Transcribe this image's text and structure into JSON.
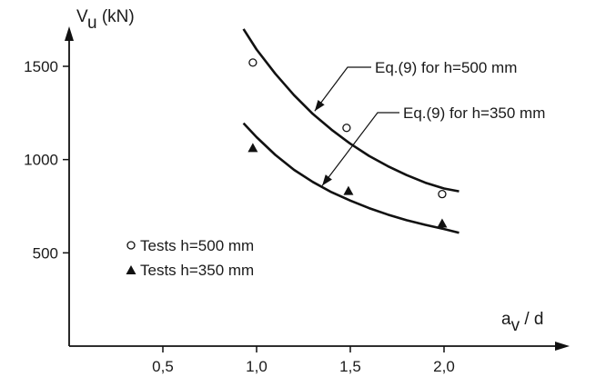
{
  "chart_data": {
    "type": "scatter",
    "title": "",
    "xlabel": {
      "main": "a",
      "sub": "v",
      "rest": " / d"
    },
    "ylabel": {
      "main": "V",
      "sub": "u",
      "rest": " (kN)"
    },
    "xlim": [
      0,
      2.5
    ],
    "ylim": [
      0,
      1750
    ],
    "xticks": [
      {
        "value": 0.5,
        "label": "0,5"
      },
      {
        "value": 1.0,
        "label": "1,0"
      },
      {
        "value": 1.5,
        "label": "1,5"
      },
      {
        "value": 2.0,
        "label": "2,0"
      }
    ],
    "yticks": [
      {
        "value": 500,
        "label": "500"
      },
      {
        "value": 1000,
        "label": "1000"
      },
      {
        "value": 1500,
        "label": "1500"
      }
    ],
    "grid": false,
    "legend_position": "bottom-left",
    "series": [
      {
        "name": "Tests h=500 mm",
        "kind": "points",
        "marker": "circle-open",
        "x": [
          0.98,
          1.48,
          1.99
        ],
        "y": [
          1520,
          1170,
          815
        ]
      },
      {
        "name": "Tests h=350 mm",
        "kind": "points",
        "marker": "triangle-filled",
        "x": [
          0.98,
          1.49,
          1.99
        ],
        "y": [
          1060,
          830,
          655
        ]
      },
      {
        "name": "Eq.(9) for h=500 mm",
        "kind": "curve",
        "x": [
          0.93,
          1.0,
          1.1,
          1.2,
          1.3,
          1.4,
          1.5,
          1.6,
          1.7,
          1.8,
          1.9,
          2.0,
          2.08
        ],
        "y": [
          1700,
          1590,
          1460,
          1345,
          1245,
          1160,
          1085,
          1020,
          965,
          917,
          876,
          845,
          830
        ]
      },
      {
        "name": "Eq.(9) for h=350 mm",
        "kind": "curve",
        "x": [
          0.93,
          1.0,
          1.1,
          1.2,
          1.3,
          1.4,
          1.5,
          1.6,
          1.7,
          1.8,
          1.9,
          2.0,
          2.08
        ],
        "y": [
          1195,
          1120,
          1025,
          945,
          880,
          825,
          780,
          740,
          705,
          675,
          650,
          628,
          608
        ]
      }
    ],
    "annotations": [
      {
        "text": "Eq.(9) for h=500 mm",
        "target_series": 2,
        "target": [
          1.31,
          1260
        ]
      },
      {
        "text": "Eq.(9) for h=350 mm",
        "target_series": 3,
        "target": [
          1.35,
          860
        ]
      }
    ]
  }
}
